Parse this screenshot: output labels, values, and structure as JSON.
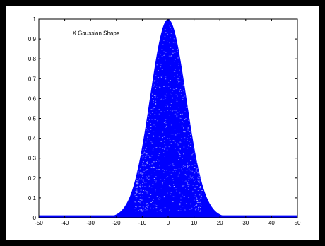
{
  "chart_data": {
    "type": "scatter",
    "title": "",
    "xlabel": "",
    "ylabel": "",
    "xlim": [
      -50,
      50
    ],
    "ylim": [
      0,
      1
    ],
    "xticks": [
      -50,
      -40,
      -30,
      -20,
      -10,
      0,
      10,
      20,
      30,
      40,
      50
    ],
    "yticks": [
      0,
      0.1,
      0.2,
      0.3,
      0.4,
      0.5,
      0.6,
      0.7,
      0.8,
      0.9,
      1
    ],
    "xtick_labels": [
      "-50",
      "-40",
      "-30",
      "-20",
      "-10",
      "0",
      "10",
      "20",
      "30",
      "40",
      "50"
    ],
    "ytick_labels": [
      "0",
      "0.1",
      "0.2",
      "0.3",
      "0.4",
      "0.5",
      "0.6",
      "0.7",
      "0.8",
      "0.9",
      "1"
    ],
    "grid": false,
    "annotation": "X Gaussian Shape",
    "series": [
      {
        "color": "#0000ff",
        "envelope": {
          "shape": "gaussian",
          "mean": 0,
          "sigma": 7,
          "peak": 1,
          "x": [
            -50,
            -40,
            -30,
            -25,
            -20,
            -17.5,
            -15,
            -12.5,
            -10,
            -7.5,
            -5,
            -2.5,
            0,
            2.5,
            5,
            7.5,
            10,
            12.5,
            15,
            17.5,
            20,
            25,
            30,
            40,
            50
          ],
          "y": [
            0.0,
            0.0,
            0.0,
            0.002,
            0.017,
            0.043,
            0.101,
            0.203,
            0.36,
            0.563,
            0.775,
            0.938,
            1.0,
            0.938,
            0.775,
            0.563,
            0.36,
            0.203,
            0.101,
            0.043,
            0.017,
            0.002,
            0.0,
            0.0,
            0.0
          ]
        }
      }
    ]
  }
}
